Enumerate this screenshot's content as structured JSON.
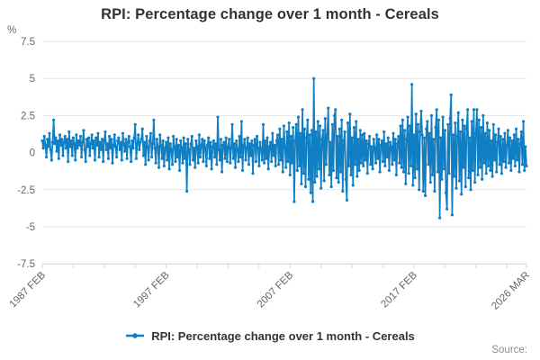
{
  "title": "RPI: Percentage change over 1 month - Cereals",
  "y_axis": {
    "unit_label": "%",
    "ticks": [
      {
        "value": 7.5,
        "label": "7.5"
      },
      {
        "value": 5,
        "label": "5"
      },
      {
        "value": 2.5,
        "label": "2.5"
      },
      {
        "value": 0,
        "label": "0"
      },
      {
        "value": -2.5,
        "label": "-2.5"
      },
      {
        "value": -5,
        "label": "-5"
      },
      {
        "value": -7.5,
        "label": "-7.5"
      }
    ]
  },
  "x_axis": {
    "tick_step_months": 30,
    "labeled_ticks": [
      {
        "index": 0,
        "label": "1987 FEB"
      },
      {
        "index": 120,
        "label": "1997 FEB"
      },
      {
        "index": 240,
        "label": "2007 FEB"
      },
      {
        "index": 360,
        "label": "2017 FEB"
      },
      {
        "index": 469,
        "label": "2026 MAR"
      }
    ]
  },
  "legend": {
    "label": "RPI: Percentage change over 1 month - Cereals"
  },
  "source": {
    "label": "Source:"
  },
  "colors": {
    "line": "#107ec2",
    "grid": "#e6e6e6",
    "axis": "#ccd6eb",
    "title_text": "#333333",
    "tick_text": "#666666",
    "source_text": "#8f8f8f"
  },
  "chart_data": {
    "type": "line",
    "title": "RPI: Percentage change over 1 month - Cereals",
    "xlabel": "",
    "ylabel": "%",
    "ylim": [
      -7.5,
      7.5
    ],
    "x_range": [
      "1987 FEB",
      "2026 MAR"
    ],
    "frequency": "monthly",
    "grid": "horizontal",
    "legend_position": "bottom",
    "series": [
      {
        "name": "RPI: Percentage change over 1 month - Cereals",
        "start": "1987 FEB",
        "end": "2026 MAR",
        "values": [
          0.8,
          0.3,
          1.1,
          0.5,
          -0.3,
          0.9,
          0.4,
          1.3,
          0.2,
          -0.5,
          0.7,
          2.2,
          0.6,
          1.0,
          0.1,
          0.8,
          -0.4,
          1.2,
          0.5,
          0.9,
          -0.2,
          0.7,
          1.1,
          0.3,
          0.9,
          -0.6,
          1.4,
          0.4,
          0.8,
          -0.2,
          1.0,
          0.6,
          -0.5,
          1.2,
          0.3,
          0.8,
          0.5,
          1.1,
          -0.3,
          0.7,
          1.5,
          0.2,
          -0.6,
          0.9,
          0.4,
          1.0,
          -0.2,
          0.6,
          1.2,
          0.3,
          0.8,
          -0.5,
          1.0,
          0.5,
          1.3,
          -0.3,
          0.7,
          0.2,
          0.9,
          -0.6,
          0.8,
          1.4,
          0.2,
          0.6,
          -0.4,
          1.1,
          0.3,
          0.9,
          -0.7,
          0.5,
          1.2,
          0.4,
          -0.3,
          0.8,
          1.0,
          0.2,
          0.7,
          -0.5,
          1.3,
          0.6,
          0.1,
          0.9,
          -0.4,
          0.7,
          1.1,
          0.4,
          -0.6,
          0.8,
          0.3,
          1.0,
          1.9,
          -0.4,
          0.6,
          1.2,
          0.2,
          0.7,
          0.9,
          1.6,
          -0.2,
          0.7,
          -0.8,
          1.1,
          0.4,
          -0.5,
          0.8,
          1.3,
          -0.3,
          0.6,
          2.2,
          0.3,
          -0.7,
          0.9,
          0.4,
          -1.0,
          1.2,
          0.5,
          -0.4,
          0.8,
          -0.9,
          0.3,
          0.7,
          -0.5,
          1.0,
          -1.1,
          0.6,
          0.2,
          -0.8,
          1.1,
          0.4,
          -0.6,
          0.9,
          -0.3,
          0.5,
          -1.2,
          0.8,
          0.3,
          -0.7,
          1.0,
          -0.4,
          0.6,
          -2.6,
          0.9,
          0.2,
          -0.8,
          0.6,
          1.1,
          -0.5,
          0.3,
          -1.0,
          0.8,
          0.4,
          -0.7,
          1.2,
          -0.3,
          0.5,
          0.9,
          -0.6,
          0.8,
          0.3,
          -0.9,
          0.5,
          1.0,
          -0.4,
          0.7,
          -1.1,
          0.4,
          0.8,
          -0.3,
          0.6,
          -0.8,
          2.4,
          0.2,
          -0.5,
          0.9,
          -1.3,
          0.5,
          0.7,
          -0.4,
          1.0,
          -0.6,
          0.4,
          0.9,
          -0.7,
          0.3,
          1.9,
          -0.4,
          0.6,
          -1.0,
          0.8,
          0.2,
          -0.6,
          1.1,
          -0.3,
          2.1,
          -1.2,
          0.5,
          0.9,
          -0.5,
          0.3,
          1.0,
          -0.8,
          0.6,
          -0.2,
          0.8,
          -1.4,
          0.5,
          0.9,
          -0.6,
          1.1,
          0.3,
          -0.9,
          0.7,
          0.2,
          -0.5,
          1.9,
          -0.7,
          0.8,
          -0.4,
          1.0,
          -1.1,
          0.4,
          0.7,
          -0.6,
          1.3,
          -0.2,
          0.5,
          -0.9,
          0.8,
          1.2,
          -0.8,
          1.6,
          -0.5,
          0.9,
          -1.3,
          1.8,
          0.4,
          -1.0,
          1.4,
          -0.6,
          2.0,
          -1.5,
          1.1,
          -0.7,
          1.7,
          -3.3,
          0.8,
          1.9,
          -1.2,
          2.4,
          -0.9,
          1.3,
          -2.1,
          2.9,
          -1.4,
          1.6,
          -2.3,
          1.0,
          2.2,
          -1.8,
          1.2,
          -2.7,
          1.5,
          -3.3,
          5.0,
          -2.0,
          1.4,
          -1.6,
          2.1,
          -1.1,
          1.8,
          -2.4,
          0.9,
          1.5,
          -1.9,
          2.3,
          -0.8,
          1.2,
          3.0,
          -1.5,
          0.7,
          -2.3,
          1.9,
          -1.2,
          2.5,
          2.9,
          -1.7,
          1.1,
          -2.0,
          1.6,
          -1.3,
          2.2,
          -2.6,
          0.8,
          1.4,
          -1.8,
          -3.2,
          2.0,
          -0.9,
          2.6,
          -1.5,
          1.0,
          -2.2,
          1.7,
          -0.8,
          2.1,
          -1.6,
          0.9,
          -1.2,
          1.5,
          -0.7,
          1.2,
          -0.9,
          1.3,
          -0.5,
          0.8,
          -1.4,
          0.6,
          1.1,
          -0.8,
          0.4,
          -1.1,
          0.9,
          0.3,
          -0.7,
          1.2,
          -0.4,
          0.9,
          -1.3,
          0.5,
          0.8,
          -0.6,
          1.4,
          -0.9,
          0.6,
          -0.3,
          1.0,
          -1.2,
          0.7,
          0.4,
          -0.8,
          1.3,
          -0.5,
          0.9,
          -1.5,
          0.6,
          1.1,
          -0.7,
          1.8,
          -1.0,
          2.2,
          -1.3,
          1.5,
          -2.1,
          0.9,
          2.4,
          -1.4,
          1.8,
          -0.9,
          4.6,
          -2.2,
          1.2,
          -1.7,
          2.6,
          -1.1,
          1.9,
          -2.5,
          1.4,
          2.8,
          1.2,
          -2.6,
          1.0,
          -2.9,
          1.6,
          2.1,
          -0.8,
          1.3,
          -2.0,
          2.5,
          -1.5,
          0.9,
          -2.6,
          1.7,
          2.9,
          -1.3,
          2.2,
          -4.4,
          1.0,
          -1.8,
          2.4,
          -1.1,
          1.5,
          -2.7,
          -3.8,
          1.9,
          -1.4,
          2.3,
          3.9,
          -4.2,
          1.2,
          -1.6,
          2.0,
          -2.4,
          1.1,
          2.7,
          -1.9,
          1.4,
          -2.8,
          2.2,
          -1.0,
          1.8,
          -2.3,
          1.6,
          2.9,
          -1.7,
          1.0,
          -2.5,
          2.1,
          -1.2,
          2.9,
          -2.0,
          1.3,
          2.9,
          -1.5,
          2.2,
          -1.0,
          1.7,
          -1.8,
          2.5,
          -0.7,
          1.3,
          -1.4,
          2.0,
          -0.9,
          1.5,
          -1.2,
          0.8,
          -1.6,
          1.9,
          -0.5,
          1.2,
          -1.3,
          0.7,
          1.6,
          -0.8,
          1.1,
          -1.4,
          0.9,
          -0.6,
          1.3,
          -1.0,
          0.5,
          1.5,
          -0.7,
          1.0,
          -1.2,
          0.8,
          -0.4,
          1.2,
          -0.9,
          1.6,
          -0.5,
          0.9,
          -1.3,
          0.6,
          1.4,
          -0.8,
          2.1,
          -1.2,
          0.4,
          -0.9
        ]
      }
    ]
  }
}
